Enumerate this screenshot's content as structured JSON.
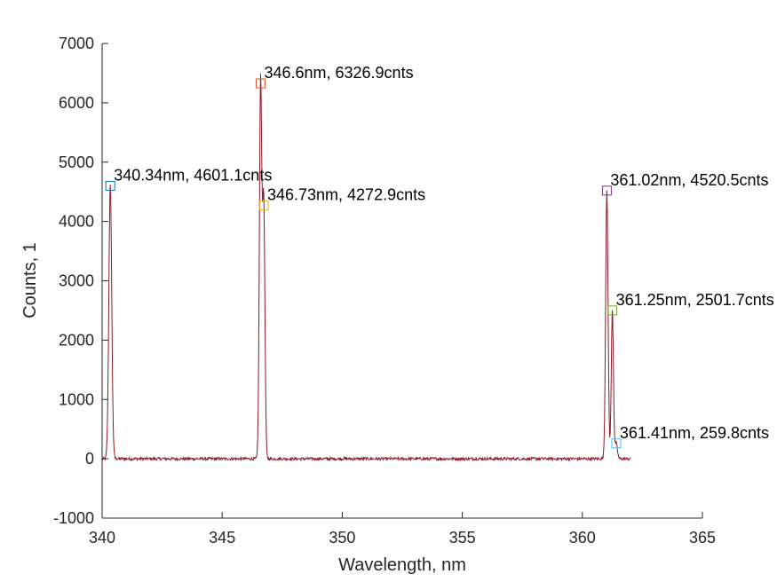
{
  "chart_data": {
    "type": "line",
    "title": "",
    "xlabel": "Wavelength, nm",
    "ylabel": "Counts, 1",
    "xlim": [
      340,
      365
    ],
    "ylim": [
      -1000,
      7000
    ],
    "xticks": [
      340,
      345,
      350,
      355,
      360,
      365
    ],
    "yticks": [
      -1000,
      0,
      1000,
      2000,
      3000,
      4000,
      5000,
      6000,
      7000
    ],
    "grid": false,
    "line_color": "#8b1a2a",
    "data_range": [
      340.0,
      362.0
    ],
    "noise_amplitude": 25,
    "peaks": [
      {
        "x": 340.34,
        "y": 4601.1,
        "width": 0.06
      },
      {
        "x": 346.6,
        "y": 6326.9,
        "width": 0.05
      },
      {
        "x": 346.73,
        "y": 4272.9,
        "width": 0.05
      },
      {
        "x": 361.02,
        "y": 4520.5,
        "width": 0.05
      },
      {
        "x": 361.25,
        "y": 2501.7,
        "width": 0.045
      },
      {
        "x": 361.41,
        "y": 259.8,
        "width": 0.05
      }
    ],
    "annotations": [
      {
        "x": 340.34,
        "y": 4601.1,
        "label": "340.34nm, 4601.1cnts",
        "marker_color": "#0072bd"
      },
      {
        "x": 346.6,
        "y": 6326.9,
        "label": "346.6nm, 6326.9cnts",
        "marker_color": "#d95319"
      },
      {
        "x": 346.73,
        "y": 4272.9,
        "label": "346.73nm, 4272.9cnts",
        "marker_color": "#edb120"
      },
      {
        "x": 361.02,
        "y": 4520.5,
        "label": "361.02nm, 4520.5cnts",
        "marker_color": "#7e2f8e"
      },
      {
        "x": 361.25,
        "y": 2501.7,
        "label": "361.25nm, 2501.7cnts",
        "marker_color": "#77ac30"
      },
      {
        "x": 361.41,
        "y": 259.8,
        "label": "361.41nm, 259.8cnts",
        "marker_color": "#4dbeee"
      }
    ]
  }
}
